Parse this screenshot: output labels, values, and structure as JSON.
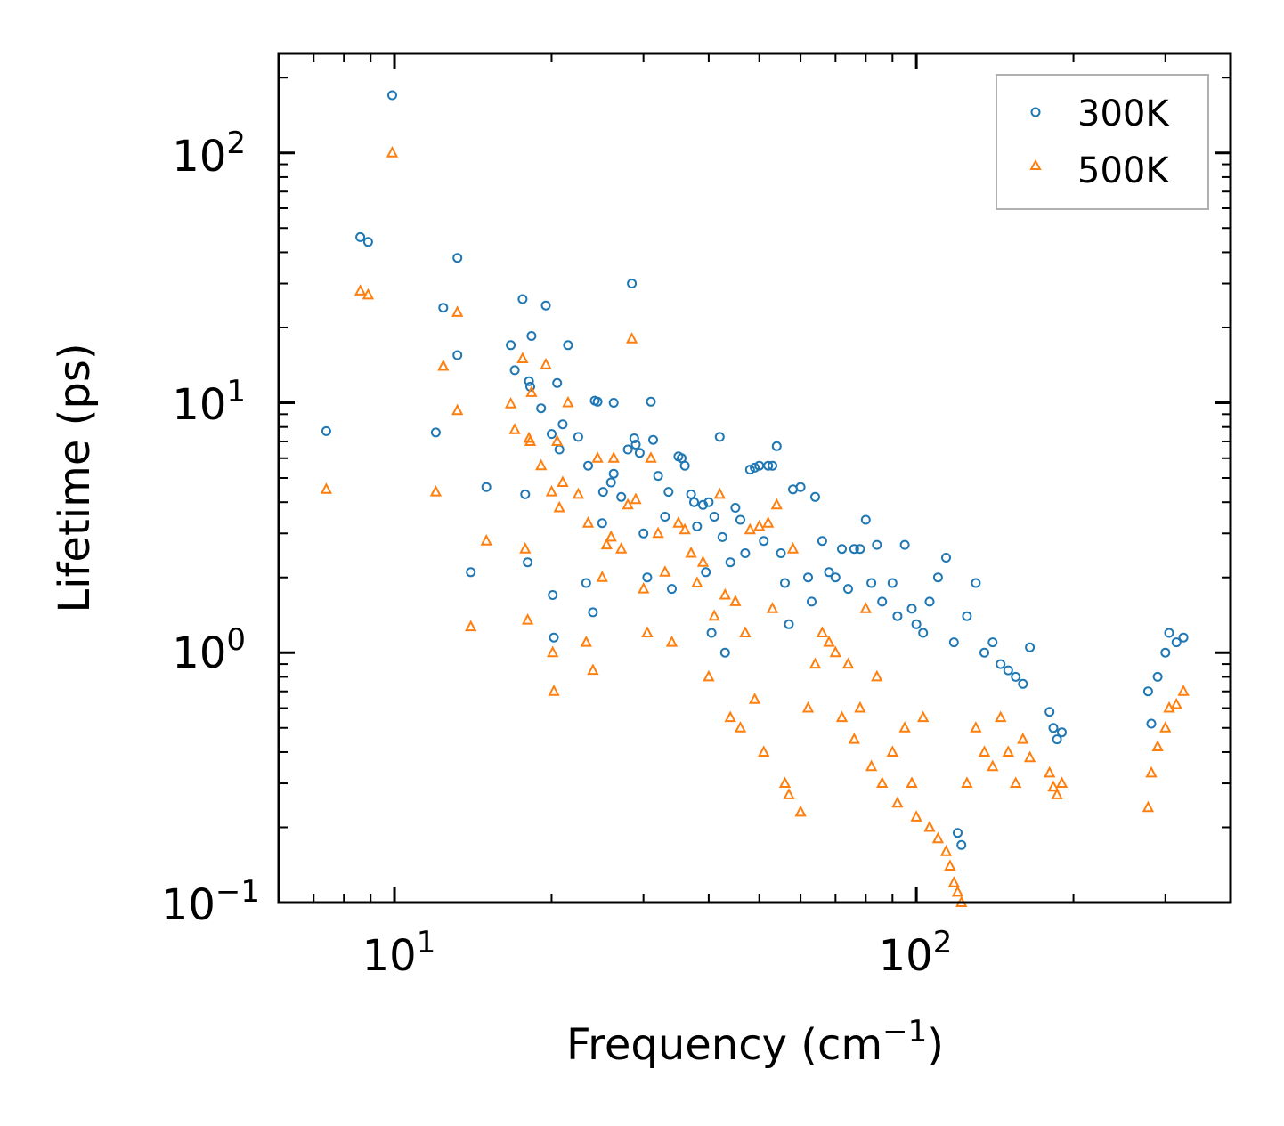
{
  "chart_data": {
    "type": "scatter",
    "title": "",
    "xscale": "log",
    "yscale": "log",
    "xlim": [
      6.0,
      400
    ],
    "ylim": [
      0.1,
      250
    ],
    "xlabel": {
      "text": "Frequency (cm",
      "sup": "−1",
      "close": ")"
    },
    "ylabel": "Lifetime (ps)",
    "x_ticks": [
      {
        "value": 10,
        "base": "10",
        "exp": "1"
      },
      {
        "value": 100,
        "base": "10",
        "exp": "2"
      }
    ],
    "y_ticks": [
      {
        "value": 0.1,
        "base": "10",
        "exp": "−1"
      },
      {
        "value": 1,
        "base": "10",
        "exp": "0"
      },
      {
        "value": 10,
        "base": "10",
        "exp": "1"
      },
      {
        "value": 100,
        "base": "10",
        "exp": "2"
      }
    ],
    "legend": {
      "position": "top-right",
      "entries": [
        {
          "label": "300K",
          "marker": "circle",
          "color": "#1f77b4"
        },
        {
          "label": "500K",
          "marker": "triangle",
          "color": "#ff7f0e"
        }
      ]
    },
    "series": [
      {
        "name": "300K",
        "marker": "circle",
        "color": "#1f77b4",
        "points": [
          [
            7.4,
            7.7
          ],
          [
            8.6,
            46
          ],
          [
            8.9,
            44
          ],
          [
            9.9,
            170
          ],
          [
            12.0,
            7.6
          ],
          [
            12.4,
            24
          ],
          [
            13.2,
            38
          ],
          [
            13.2,
            15.5
          ],
          [
            14.0,
            2.1
          ],
          [
            15.0,
            4.6
          ],
          [
            16.7,
            17
          ],
          [
            17.0,
            13.5
          ],
          [
            17.6,
            26
          ],
          [
            17.8,
            4.3
          ],
          [
            18.0,
            2.3
          ],
          [
            18.1,
            12.2
          ],
          [
            18.2,
            11.6
          ],
          [
            18.3,
            18.5
          ],
          [
            19.1,
            9.5
          ],
          [
            19.5,
            24.5
          ],
          [
            20.0,
            7.5
          ],
          [
            20.1,
            1.7
          ],
          [
            20.2,
            1.15
          ],
          [
            20.5,
            12
          ],
          [
            20.7,
            6.5
          ],
          [
            21.0,
            8.2
          ],
          [
            21.5,
            17
          ],
          [
            22.5,
            7.3
          ],
          [
            23.3,
            1.9
          ],
          [
            23.5,
            5.6
          ],
          [
            24.0,
            1.45
          ],
          [
            24.2,
            10.2
          ],
          [
            24.5,
            10.1
          ],
          [
            25.0,
            3.3
          ],
          [
            25.1,
            4.4
          ],
          [
            26.0,
            4.8
          ],
          [
            26.3,
            10
          ],
          [
            26.3,
            5.2
          ],
          [
            27.2,
            4.2
          ],
          [
            28.0,
            6.5
          ],
          [
            28.5,
            30
          ],
          [
            28.8,
            7.2
          ],
          [
            29.0,
            6.8
          ],
          [
            29.5,
            6.3
          ],
          [
            30.0,
            3.0
          ],
          [
            30.5,
            2.0
          ],
          [
            31.0,
            10.1
          ],
          [
            31.3,
            7.1
          ],
          [
            32.0,
            5.1
          ],
          [
            33.0,
            3.5
          ],
          [
            33.5,
            4.4
          ],
          [
            34.0,
            1.8
          ],
          [
            35.0,
            6.1
          ],
          [
            35.5,
            6.0
          ],
          [
            36.0,
            5.6
          ],
          [
            37.0,
            4.3
          ],
          [
            37.5,
            4.0
          ],
          [
            38.0,
            3.2
          ],
          [
            39.0,
            3.9
          ],
          [
            39.5,
            2.1
          ],
          [
            40.0,
            4.0
          ],
          [
            40.5,
            1.2
          ],
          [
            41.0,
            3.5
          ],
          [
            42.0,
            7.3
          ],
          [
            42.5,
            2.9
          ],
          [
            43.0,
            1.0
          ],
          [
            44.0,
            2.3
          ],
          [
            45.0,
            3.8
          ],
          [
            46.0,
            3.4
          ],
          [
            47.0,
            2.5
          ],
          [
            48.0,
            5.4
          ],
          [
            49.0,
            5.5
          ],
          [
            50.0,
            5.6
          ],
          [
            51.0,
            2.8
          ],
          [
            52.0,
            5.6
          ],
          [
            53.0,
            5.6
          ],
          [
            54.0,
            6.7
          ],
          [
            55.0,
            2.5
          ],
          [
            56.0,
            1.9
          ],
          [
            57.0,
            1.3
          ],
          [
            58.0,
            4.5
          ],
          [
            60.0,
            4.6
          ],
          [
            62.0,
            2.0
          ],
          [
            63.0,
            1.6
          ],
          [
            64.0,
            4.2
          ],
          [
            66.0,
            2.8
          ],
          [
            68.0,
            2.1
          ],
          [
            70.0,
            2.0
          ],
          [
            72.0,
            2.6
          ],
          [
            74.0,
            1.8
          ],
          [
            76.0,
            2.6
          ],
          [
            78.0,
            2.6
          ],
          [
            80.0,
            3.4
          ],
          [
            82.0,
            1.9
          ],
          [
            84.0,
            2.7
          ],
          [
            86.0,
            1.6
          ],
          [
            90.0,
            1.9
          ],
          [
            92.0,
            1.4
          ],
          [
            95.0,
            2.7
          ],
          [
            98.0,
            1.5
          ],
          [
            100.0,
            1.3
          ],
          [
            103.0,
            1.2
          ],
          [
            106.0,
            1.6
          ],
          [
            110.0,
            2.0
          ],
          [
            114.0,
            2.4
          ],
          [
            118.0,
            1.1
          ],
          [
            120.0,
            0.19
          ],
          [
            122.0,
            0.17
          ],
          [
            125.0,
            1.4
          ],
          [
            130.0,
            1.9
          ],
          [
            135.0,
            1.0
          ],
          [
            140.0,
            1.1
          ],
          [
            145.0,
            0.9
          ],
          [
            150.0,
            0.85
          ],
          [
            155.0,
            0.8
          ],
          [
            160.0,
            0.75
          ],
          [
            165.0,
            1.05
          ],
          [
            180.0,
            0.58
          ],
          [
            183.0,
            0.5
          ],
          [
            186.0,
            0.45
          ],
          [
            190.0,
            0.48
          ],
          [
            278.0,
            0.7
          ],
          [
            282.0,
            0.52
          ],
          [
            290.0,
            0.8
          ],
          [
            300.0,
            1.0
          ],
          [
            305.0,
            1.2
          ],
          [
            315.0,
            1.1
          ],
          [
            325.0,
            1.15
          ]
        ]
      },
      {
        "name": "500K",
        "marker": "triangle",
        "color": "#ff7f0e",
        "points": [
          [
            7.4,
            4.5
          ],
          [
            8.6,
            28
          ],
          [
            8.9,
            27
          ],
          [
            9.9,
            100
          ],
          [
            12.0,
            4.4
          ],
          [
            12.4,
            14
          ],
          [
            13.2,
            23
          ],
          [
            13.2,
            9.3
          ],
          [
            14.0,
            1.27
          ],
          [
            15.0,
            2.8
          ],
          [
            16.7,
            9.9
          ],
          [
            17.0,
            7.8
          ],
          [
            17.6,
            15
          ],
          [
            17.8,
            2.6
          ],
          [
            18.0,
            1.35
          ],
          [
            18.1,
            7.2
          ],
          [
            18.2,
            7.0
          ],
          [
            18.3,
            11
          ],
          [
            19.1,
            5.6
          ],
          [
            19.5,
            14.2
          ],
          [
            20.0,
            4.4
          ],
          [
            20.1,
            1.0
          ],
          [
            20.2,
            0.7
          ],
          [
            20.5,
            7.0
          ],
          [
            20.7,
            3.8
          ],
          [
            21.0,
            4.8
          ],
          [
            21.5,
            10
          ],
          [
            22.5,
            4.3
          ],
          [
            23.3,
            1.1
          ],
          [
            23.5,
            3.3
          ],
          [
            24.0,
            0.85
          ],
          [
            24.5,
            6.0
          ],
          [
            25.0,
            2.0
          ],
          [
            25.5,
            2.7
          ],
          [
            26.0,
            2.9
          ],
          [
            26.3,
            6.0
          ],
          [
            27.2,
            2.6
          ],
          [
            28.0,
            3.9
          ],
          [
            28.5,
            18
          ],
          [
            29.0,
            4.1
          ],
          [
            30.0,
            1.8
          ],
          [
            30.5,
            1.2
          ],
          [
            31.0,
            6.0
          ],
          [
            32.0,
            3.0
          ],
          [
            33.0,
            2.1
          ],
          [
            34.0,
            1.1
          ],
          [
            35.0,
            3.3
          ],
          [
            36.0,
            3.1
          ],
          [
            37.0,
            2.5
          ],
          [
            38.0,
            1.9
          ],
          [
            39.0,
            2.3
          ],
          [
            40.0,
            0.8
          ],
          [
            41.0,
            1.4
          ],
          [
            42.0,
            4.3
          ],
          [
            43.0,
            1.7
          ],
          [
            44.0,
            0.55
          ],
          [
            45.0,
            1.6
          ],
          [
            46.0,
            0.5
          ],
          [
            47.0,
            1.2
          ],
          [
            48.0,
            3.1
          ],
          [
            49.0,
            0.65
          ],
          [
            50.0,
            3.2
          ],
          [
            51.0,
            0.4
          ],
          [
            52.0,
            3.3
          ],
          [
            53.0,
            1.5
          ],
          [
            54.0,
            3.9
          ],
          [
            56.0,
            0.3
          ],
          [
            57.0,
            0.27
          ],
          [
            58.0,
            2.6
          ],
          [
            60.0,
            0.23
          ],
          [
            62.0,
            0.6
          ],
          [
            64.0,
            0.9
          ],
          [
            66.0,
            1.2
          ],
          [
            68.0,
            1.1
          ],
          [
            70.0,
            1.0
          ],
          [
            72.0,
            0.55
          ],
          [
            74.0,
            0.9
          ],
          [
            76.0,
            0.45
          ],
          [
            78.0,
            0.6
          ],
          [
            80.0,
            1.5
          ],
          [
            82.0,
            0.35
          ],
          [
            84.0,
            0.8
          ],
          [
            86.0,
            0.3
          ],
          [
            90.0,
            0.4
          ],
          [
            92.0,
            0.25
          ],
          [
            95.0,
            0.5
          ],
          [
            98.0,
            0.3
          ],
          [
            100.0,
            0.22
          ],
          [
            103.0,
            0.55
          ],
          [
            106.0,
            0.2
          ],
          [
            110.0,
            0.18
          ],
          [
            114.0,
            0.16
          ],
          [
            116.0,
            0.14
          ],
          [
            118.0,
            0.12
          ],
          [
            120.0,
            0.11
          ],
          [
            122.0,
            0.1
          ],
          [
            125.0,
            0.3
          ],
          [
            130.0,
            0.5
          ],
          [
            135.0,
            0.4
          ],
          [
            140.0,
            0.35
          ],
          [
            145.0,
            0.55
          ],
          [
            150.0,
            0.4
          ],
          [
            155.0,
            0.3
          ],
          [
            160.0,
            0.45
          ],
          [
            165.0,
            0.38
          ],
          [
            180.0,
            0.33
          ],
          [
            183.0,
            0.29
          ],
          [
            186.0,
            0.27
          ],
          [
            190.0,
            0.3
          ],
          [
            278.0,
            0.24
          ],
          [
            282.0,
            0.33
          ],
          [
            290.0,
            0.42
          ],
          [
            300.0,
            0.5
          ],
          [
            305.0,
            0.6
          ],
          [
            315.0,
            0.62
          ],
          [
            325.0,
            0.7
          ]
        ]
      }
    ]
  }
}
